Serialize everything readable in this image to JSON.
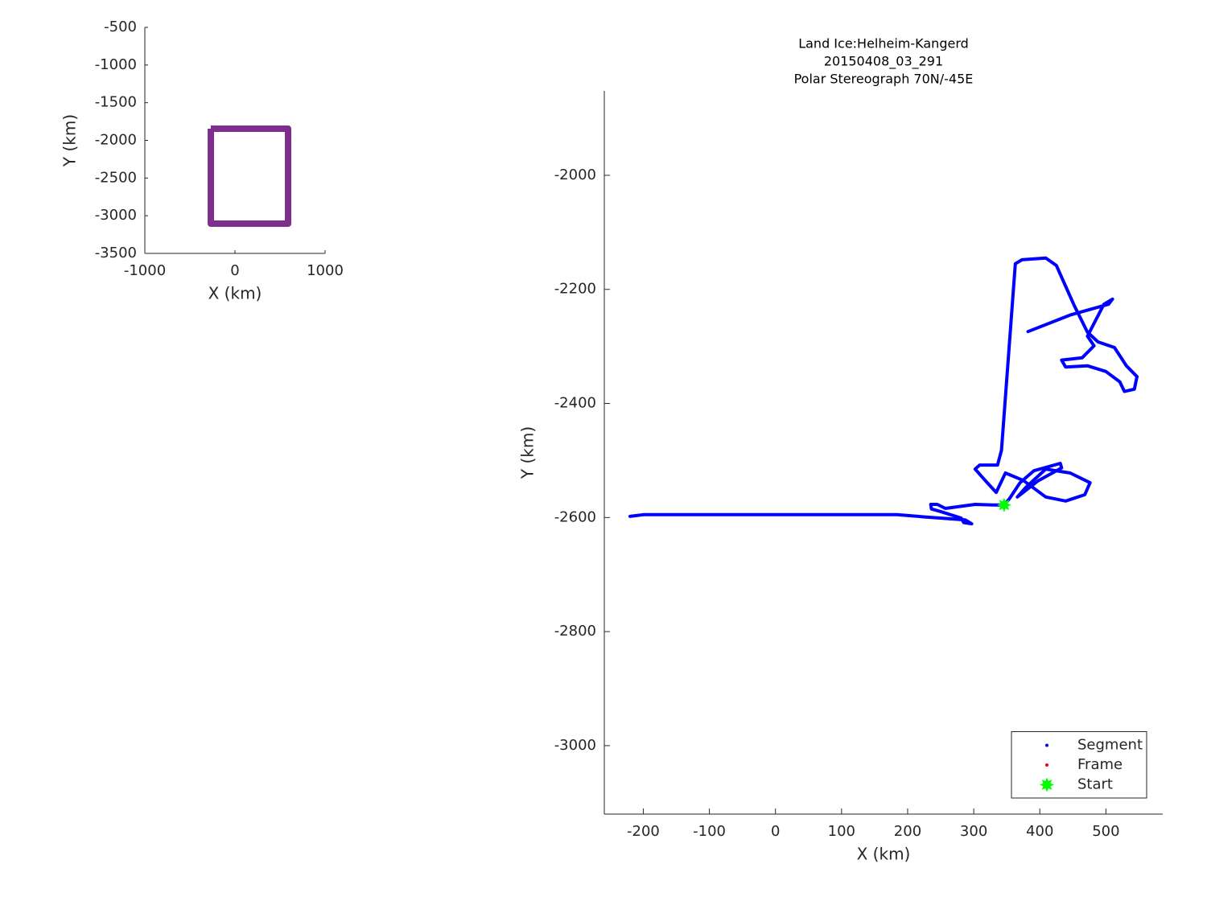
{
  "chart_data": [
    {
      "type": "line",
      "xlabel": "X (km)",
      "ylabel": "Y (km)",
      "xlim": [
        -1000,
        1000
      ],
      "ylim": [
        -3500,
        -500
      ],
      "xticks": [
        -1000,
        0,
        1000
      ],
      "yticks": [
        -3500,
        -3000,
        -2500,
        -2000,
        -1500,
        -1000,
        -500
      ],
      "series": [
        {
          "color": "#7e2f8e",
          "x": [
            -268,
            589,
            589,
            -268,
            -268
          ],
          "values": [
            -1845,
            -1845,
            -3105,
            -3105,
            -1845
          ]
        }
      ]
    },
    {
      "type": "line",
      "title": [
        "Land Ice:Helheim-Kangerd",
        "20150408_03_291",
        "Polar Stereograph 70N/-45E"
      ],
      "xlabel": "X (km)",
      "ylabel": "Y (km)",
      "xlim": [
        -259,
        586
      ],
      "ylim": [
        -3120,
        -1852
      ],
      "xticks": [
        -200,
        -100,
        0,
        100,
        200,
        300,
        400,
        500
      ],
      "yticks": [
        -3000,
        -2800,
        -2600,
        -2400,
        -2200,
        -2000
      ],
      "legend": "lower right",
      "series": [
        {
          "name": "Segment",
          "color": "#0000ff",
          "marker": ".",
          "x": [
            -220,
            -200,
            44,
            184,
            226,
            287,
            297,
            285,
            281,
            251,
            236,
            235,
            245,
            257,
            302,
            330,
            346,
            354,
            370,
            391,
            431,
            433,
            397,
            366,
            379,
            409,
            446,
            476,
            468,
            439,
            409,
            375,
            348,
            334,
            318,
            302,
            309,
            336,
            342,
            363,
            373,
            409,
            425,
            452,
            472,
            488,
            513,
            531,
            547,
            543,
            528,
            521,
            500,
            472,
            439,
            433,
            464,
            482,
            472,
            497,
            510,
            504,
            446,
            382
          ],
          "values": [
            -2598,
            -2595,
            -2595,
            -2595,
            -2599,
            -2604,
            -2611,
            -2609,
            -2601,
            -2590,
            -2585,
            -2577,
            -2577,
            -2584,
            -2577,
            -2578,
            -2578,
            -2567,
            -2539,
            -2518,
            -2505,
            -2513,
            -2536,
            -2564,
            -2547,
            -2515,
            -2522,
            -2539,
            -2560,
            -2571,
            -2564,
            -2535,
            -2522,
            -2556,
            -2536,
            -2515,
            -2508,
            -2508,
            -2482,
            -2155,
            -2148,
            -2145,
            -2158,
            -2228,
            -2275,
            -2292,
            -2302,
            -2334,
            -2353,
            -2375,
            -2379,
            -2362,
            -2344,
            -2334,
            -2336,
            -2324,
            -2320,
            -2299,
            -2282,
            -2226,
            -2217,
            -2226,
            -2245,
            -2274
          ]
        },
        {
          "name": "Frame",
          "color": "#ff0000",
          "marker": ".",
          "x": [],
          "values": []
        },
        {
          "name": "Start",
          "color": "#00ff00",
          "marker": "*",
          "x": [
            346
          ],
          "values": [
            -2578
          ]
        }
      ]
    }
  ]
}
